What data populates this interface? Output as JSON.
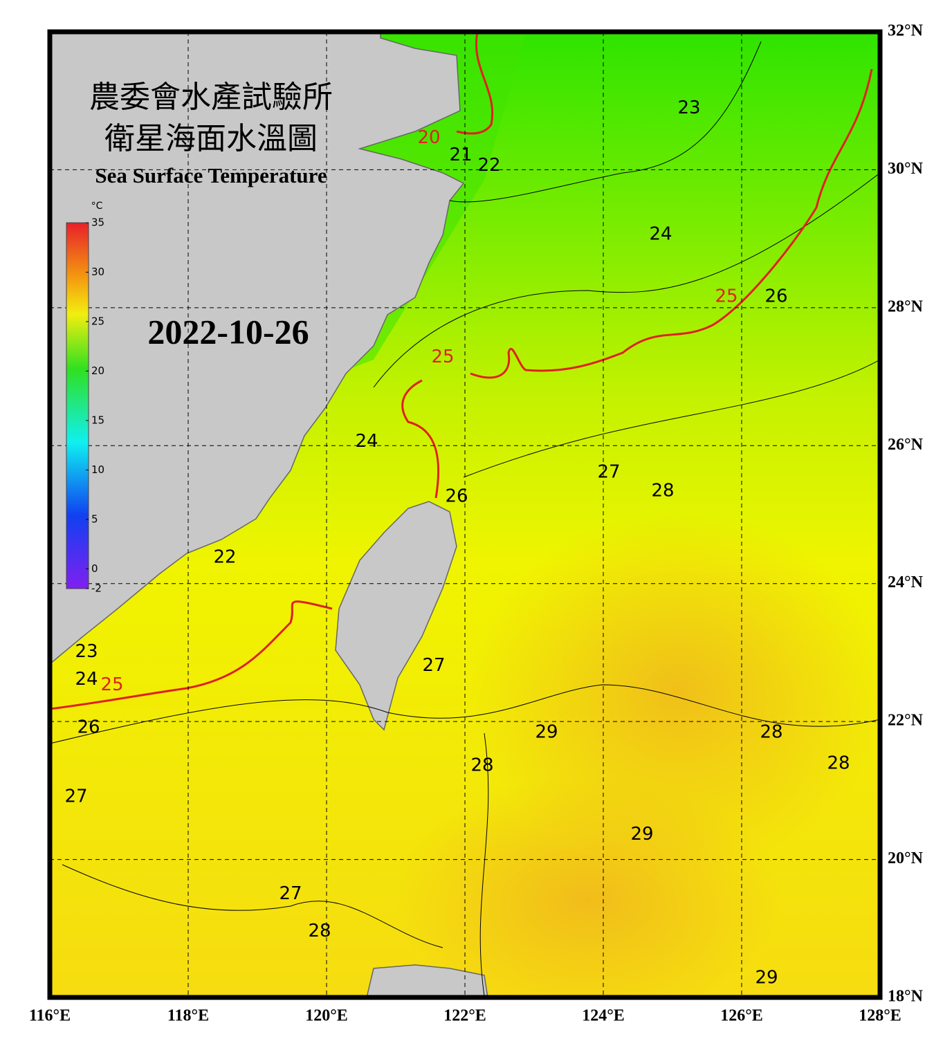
{
  "header": {
    "title_zh_1": "農委會水產試驗所",
    "title_zh_2": "衛星海面水溫圖",
    "title_en": "Sea Surface Temperature",
    "date": "2022-10-26"
  },
  "map": {
    "type": "map",
    "lonlim": [
      116,
      128
    ],
    "latlim": [
      18,
      32
    ],
    "grid": true,
    "lonticks": [
      {
        "value": 116,
        "label": "116°E"
      },
      {
        "value": 118,
        "label": "118°E"
      },
      {
        "value": 120,
        "label": "120°E"
      },
      {
        "value": 122,
        "label": "122°E"
      },
      {
        "value": 124,
        "label": "124°E"
      },
      {
        "value": 126,
        "label": "126°E"
      },
      {
        "value": 128,
        "label": "128°E"
      }
    ],
    "latticks": [
      {
        "value": 32,
        "label": "32°N"
      },
      {
        "value": 30,
        "label": "30°N"
      },
      {
        "value": 28,
        "label": "28°N"
      },
      {
        "value": 26,
        "label": "26°N"
      },
      {
        "value": 24,
        "label": "24°N"
      },
      {
        "value": 22,
        "label": "22°N"
      },
      {
        "value": 20,
        "label": "20°N"
      },
      {
        "value": 18,
        "label": "18°N"
      }
    ]
  },
  "colorbar": {
    "unit": "°C",
    "lim": [
      -2,
      35
    ],
    "ticks": [
      35,
      30,
      25,
      20,
      15,
      10,
      5,
      0,
      -2
    ]
  },
  "contour_labels": [
    {
      "value": 20,
      "lon": 121.48,
      "lat": 30.46,
      "color": "#e02020"
    },
    {
      "value": 21,
      "lon": 121.94,
      "lat": 30.21,
      "color": "#000000"
    },
    {
      "value": 22,
      "lon": 122.35,
      "lat": 30.06,
      "color": "#000000"
    },
    {
      "value": 23,
      "lon": 125.24,
      "lat": 30.89,
      "color": "#000000"
    },
    {
      "value": 24,
      "lon": 124.83,
      "lat": 29.06,
      "color": "#000000"
    },
    {
      "value": 25,
      "lon": 125.78,
      "lat": 28.16,
      "color": "#e02020"
    },
    {
      "value": 26,
      "lon": 126.5,
      "lat": 28.16,
      "color": "#000000"
    },
    {
      "value": 25,
      "lon": 121.68,
      "lat": 27.28,
      "color": "#e02020"
    },
    {
      "value": 24,
      "lon": 120.58,
      "lat": 26.06,
      "color": "#000000"
    },
    {
      "value": 26,
      "lon": 121.88,
      "lat": 25.26,
      "color": "#000000"
    },
    {
      "value": 27,
      "lon": 124.08,
      "lat": 25.61,
      "color": "#000000"
    },
    {
      "value": 28,
      "lon": 124.86,
      "lat": 25.34,
      "color": "#000000"
    },
    {
      "value": 22,
      "lon": 118.53,
      "lat": 24.38,
      "color": "#000000"
    },
    {
      "value": 23,
      "lon": 116.53,
      "lat": 23.01,
      "color": "#000000"
    },
    {
      "value": 24,
      "lon": 116.53,
      "lat": 22.61,
      "color": "#000000"
    },
    {
      "value": 25,
      "lon": 116.9,
      "lat": 22.53,
      "color": "#e02020"
    },
    {
      "value": 26,
      "lon": 116.56,
      "lat": 21.91,
      "color": "#000000"
    },
    {
      "value": 27,
      "lon": 121.55,
      "lat": 22.81,
      "color": "#000000"
    },
    {
      "value": 29,
      "lon": 123.18,
      "lat": 21.84,
      "color": "#000000"
    },
    {
      "value": 28,
      "lon": 126.43,
      "lat": 21.84,
      "color": "#000000"
    },
    {
      "value": 28,
      "lon": 127.4,
      "lat": 21.39,
      "color": "#000000"
    },
    {
      "value": 28,
      "lon": 122.25,
      "lat": 21.36,
      "color": "#000000"
    },
    {
      "value": 27,
      "lon": 116.38,
      "lat": 20.91,
      "color": "#000000"
    },
    {
      "value": 29,
      "lon": 124.56,
      "lat": 20.36,
      "color": "#000000"
    },
    {
      "value": 27,
      "lon": 119.48,
      "lat": 19.5,
      "color": "#000000"
    },
    {
      "value": 28,
      "lon": 119.9,
      "lat": 18.96,
      "color": "#000000"
    },
    {
      "value": 29,
      "lon": 126.36,
      "lat": 18.28,
      "color": "#000000"
    }
  ]
}
